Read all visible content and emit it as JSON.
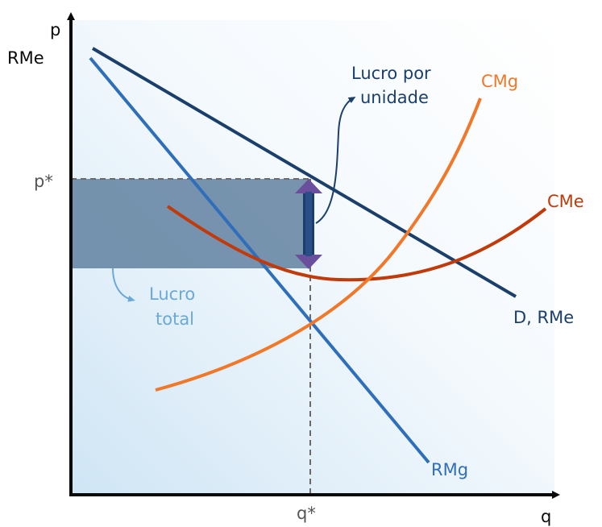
{
  "axes": {
    "y_label": "p",
    "y_label2": "RMe",
    "x_label": "q",
    "p_star": "p*",
    "q_star": "q*"
  },
  "curves": {
    "demand": "D, RMe",
    "marginal_revenue": "RMg",
    "marginal_cost": "CMg",
    "average_cost": "CMe"
  },
  "annotations": {
    "unit_profit_line1": "Lucro por",
    "unit_profit_line2": "unidade",
    "total_profit_line1": "Lucro",
    "total_profit_line2": "total"
  },
  "colors": {
    "axes": "#0a0a0a",
    "demand": "#1b3f6b",
    "marginal_revenue": "#2f6fba",
    "marginal_cost": "#f07828",
    "average_cost": "#c03a0a",
    "profit_area": "#5b7c9c",
    "profit_arrow": "#6a4f9c",
    "total_profit_text": "#6aa9d8"
  }
}
